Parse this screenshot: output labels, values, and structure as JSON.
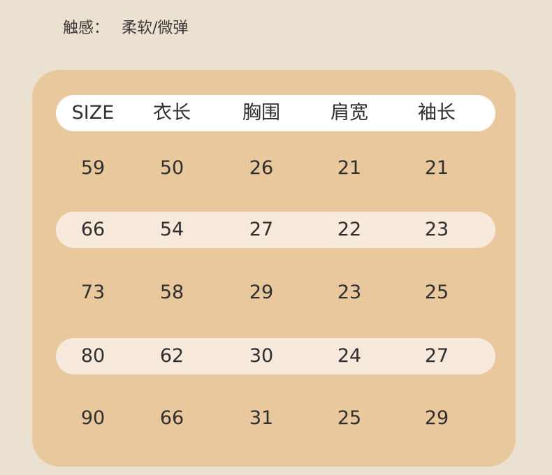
{
  "attribute": {
    "label": "触感：",
    "value": "柔软/微弹"
  },
  "table": {
    "headers": [
      "SIZE",
      "衣长",
      "胸围",
      "肩宽",
      "袖长"
    ],
    "rows": [
      [
        "59",
        "50",
        "26",
        "21",
        "21"
      ],
      [
        "66",
        "54",
        "27",
        "22",
        "23"
      ],
      [
        "73",
        "58",
        "29",
        "23",
        "25"
      ],
      [
        "80",
        "62",
        "30",
        "24",
        "27"
      ],
      [
        "90",
        "66",
        "31",
        "25",
        "29"
      ]
    ]
  },
  "colors": {
    "background": "#ebe1d1",
    "card": "#e8c89c",
    "header": "#ffffff",
    "stripe": "#f7eadc"
  }
}
